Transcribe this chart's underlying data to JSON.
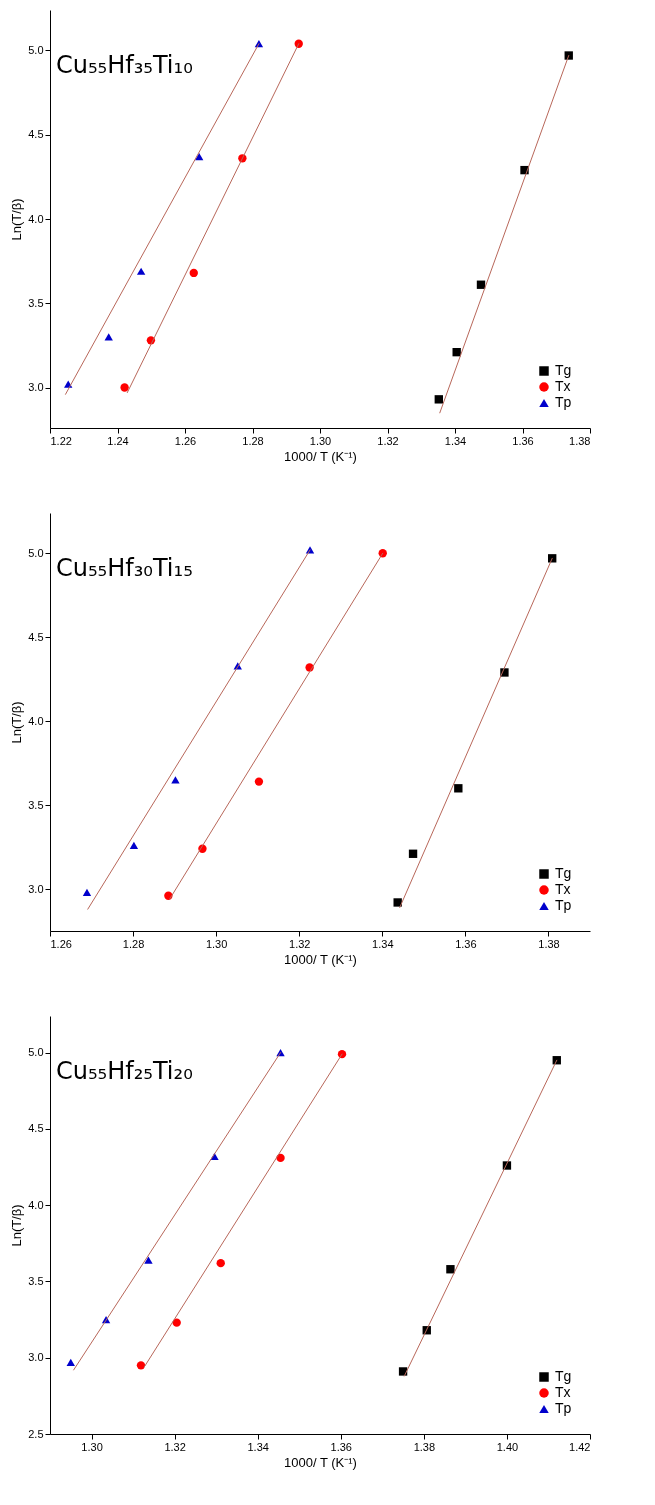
{
  "chart_data": [
    {
      "type": "scatter",
      "title": "Cu₅₅Hf₃₅Ti₁₀",
      "xlabel": "1000/ T (K⁻¹)",
      "ylabel": "Ln(T/β)",
      "legend": "bottom right",
      "xlim": [
        1.22,
        1.38
      ],
      "ylim": [
        2.76,
        5.24
      ],
      "xticks": [
        {
          "value": 1.22,
          "label": "1.22"
        },
        {
          "value": 1.24,
          "label": "1.24"
        },
        {
          "value": 1.26,
          "label": "1.26"
        },
        {
          "value": 1.28,
          "label": "1.28"
        },
        {
          "value": 1.3,
          "label": "1.30"
        },
        {
          "value": 1.32,
          "label": "1.32"
        },
        {
          "value": 1.34,
          "label": "1.34"
        },
        {
          "value": 1.36,
          "label": "1.36"
        },
        {
          "value": 1.38,
          "label": "1.38"
        }
      ],
      "yticks": [
        {
          "value": 3,
          "label": "3.0"
        },
        3.5,
        {
          "value": 4,
          "label": "4.0"
        },
        4.5,
        {
          "value": 5,
          "label": "5.0"
        }
      ],
      "series": [
        {
          "name": "Tg",
          "color": "#000000",
          "marker": "square",
          "x": [
            1.3352,
            1.3405,
            1.3477,
            1.3606,
            1.3737
          ],
          "values": [
            2.93,
            3.21,
            3.61,
            4.29,
            4.97
          ]
        },
        {
          "name": "Tx",
          "color": "#ff0000",
          "marker": "circle",
          "x": [
            1.2421,
            1.2499,
            1.2626,
            1.277,
            1.2937
          ],
          "values": [
            3.0,
            3.28,
            3.68,
            4.36,
            5.04
          ]
        },
        {
          "name": "Tp",
          "color": "#0000cc",
          "marker": "triangle",
          "x": [
            1.2254,
            1.2374,
            1.247,
            1.2642,
            1.2819
          ],
          "values": [
            3.02,
            3.3,
            3.69,
            4.37,
            5.04
          ]
        },
        {
          "type": "line",
          "color": "#b8675a",
          "marker": "none",
          "x": [
            1.2246,
            1.2819
          ],
          "values": [
            2.96,
            5.04
          ]
        },
        {
          "type": "line",
          "color": "#b8675a",
          "marker": "none",
          "x": [
            1.2429,
            1.2937
          ],
          "values": [
            2.97,
            5.04
          ]
        },
        {
          "type": "line",
          "color": "#b8675a",
          "marker": "none",
          "x": [
            1.3355,
            1.3737
          ],
          "values": [
            2.85,
            4.97
          ]
        }
      ]
    },
    {
      "type": "scatter",
      "title": "Cu₅₅Hf₃₀Ti₁₅",
      "xlabel": "1000/ T (K⁻¹)",
      "ylabel": "Ln(T/β)",
      "legend": "bottom right",
      "xlim": [
        1.26,
        1.39
      ],
      "ylim": [
        2.75,
        5.24
      ],
      "xticks": [
        {
          "value": 1.26,
          "label": "1.26"
        },
        {
          "value": 1.28,
          "label": "1.28"
        },
        {
          "value": 1.3,
          "label": "1.30"
        },
        {
          "value": 1.32,
          "label": "1.32"
        },
        {
          "value": 1.34,
          "label": "1.34"
        },
        {
          "value": 1.36,
          "label": "1.36"
        },
        {
          "value": 1.38,
          "label": "1.38"
        }
      ],
      "yticks": [
        {
          "value": 3,
          "label": "3.0"
        },
        3.5,
        {
          "value": 4,
          "label": "4.0"
        },
        4.5,
        {
          "value": 5,
          "label": "5.0"
        }
      ],
      "series": [
        {
          "name": "Tg",
          "color": "#000000",
          "marker": "square",
          "x": [
            1.3437,
            1.3474,
            1.3583,
            1.3694,
            1.3809
          ],
          "values": [
            2.92,
            3.21,
            3.6,
            4.29,
            4.97
          ]
        },
        {
          "name": "Tx",
          "color": "#ff0000",
          "marker": "circle",
          "x": [
            1.2885,
            1.2967,
            1.3103,
            1.3225,
            1.3401
          ],
          "values": [
            2.96,
            3.24,
            3.64,
            4.32,
            5.0
          ]
        },
        {
          "name": "Tp",
          "color": "#0000cc",
          "marker": "triangle",
          "x": [
            1.2689,
            1.2802,
            1.2902,
            1.3052,
            1.3226
          ],
          "values": [
            2.98,
            3.26,
            3.65,
            4.33,
            5.02
          ]
        },
        {
          "type": "line",
          "color": "#b8675a",
          "marker": "none",
          "x": [
            1.2691,
            1.3226
          ],
          "values": [
            2.88,
            5.02
          ]
        },
        {
          "type": "line",
          "color": "#b8675a",
          "marker": "none",
          "x": [
            1.2888,
            1.3401
          ],
          "values": [
            2.94,
            5.0
          ]
        },
        {
          "type": "line",
          "color": "#b8675a",
          "marker": "none",
          "x": [
            1.3442,
            1.3809
          ],
          "values": [
            2.89,
            4.97
          ]
        }
      ]
    },
    {
      "type": "scatter",
      "title": "Cu₅₅Hf₂₅Ti₂₀",
      "xlabel": "1000/ T (K⁻¹)",
      "ylabel": "Ln(T/β)",
      "legend": "bottom right",
      "xlim": [
        1.29,
        1.42
      ],
      "ylim": [
        2.5,
        5.24
      ],
      "xticks": [
        {
          "value": 1.3,
          "label": "1.30"
        },
        {
          "value": 1.32,
          "label": "1.32"
        },
        {
          "value": 1.34,
          "label": "1.34"
        },
        {
          "value": 1.36,
          "label": "1.36"
        },
        {
          "value": 1.38,
          "label": "1.38"
        },
        {
          "value": 1.4,
          "label": "1.40"
        },
        {
          "value": 1.42,
          "label": "1.42"
        }
      ],
      "yticks": [
        2.5,
        {
          "value": 3,
          "label": "3.0"
        },
        3.5,
        {
          "value": 4,
          "label": "4.0"
        },
        4.5,
        {
          "value": 5,
          "label": "5.0"
        }
      ],
      "series": [
        {
          "name": "Tg",
          "color": "#000000",
          "marker": "square",
          "x": [
            1.375,
            1.3807,
            1.3864,
            1.4,
            1.412
          ],
          "values": [
            2.91,
            3.18,
            3.58,
            4.26,
            4.95
          ]
        },
        {
          "name": "Tx",
          "color": "#ff0000",
          "marker": "circle",
          "x": [
            1.3119,
            1.3205,
            1.3311,
            1.3455,
            1.3603
          ],
          "values": [
            2.95,
            3.23,
            3.62,
            4.31,
            4.99
          ]
        },
        {
          "name": "Tp",
          "color": "#0000cc",
          "marker": "triangle",
          "x": [
            1.295,
            1.3035,
            1.3137,
            1.3296,
            1.3455
          ],
          "values": [
            2.97,
            3.25,
            3.64,
            4.32,
            5.0
          ]
        },
        {
          "type": "line",
          "color": "#b8675a",
          "marker": "none",
          "x": [
            1.2957,
            1.3455
          ],
          "values": [
            2.92,
            5.0
          ]
        },
        {
          "type": "line",
          "color": "#b8675a",
          "marker": "none",
          "x": [
            1.3127,
            1.3603
          ],
          "values": [
            2.94,
            4.99
          ]
        },
        {
          "type": "line",
          "color": "#b8675a",
          "marker": "none",
          "x": [
            1.3753,
            1.412
          ],
          "values": [
            2.88,
            4.95
          ]
        }
      ]
    }
  ]
}
